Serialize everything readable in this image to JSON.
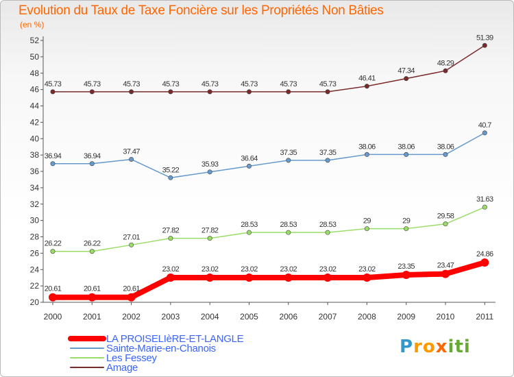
{
  "chart_data": {
    "type": "line",
    "title": "Evolution du Taux de Taxe Foncière sur les Propriétés Non Bâties",
    "unit": "(en %)",
    "xlabel": "",
    "ylabel": "",
    "ylim": [
      20,
      52
    ],
    "ytick_step": 2,
    "x": [
      "2000",
      "2001",
      "2002",
      "2003",
      "2004",
      "2005",
      "2006",
      "2007",
      "2008",
      "2009",
      "2010",
      "2011"
    ],
    "grid": false,
    "legend_position": "bottom-left",
    "series": [
      {
        "name": "LA PROISELIèRE-ET-LANGLE",
        "color": "#ff0000",
        "values": [
          20.61,
          20.61,
          20.61,
          23.02,
          23.02,
          23.02,
          23.02,
          23.02,
          23.02,
          23.35,
          23.47,
          24.86
        ],
        "labels": [
          "20.61",
          "20.61",
          "20.61",
          "23.02",
          "23.02",
          "23.02",
          "23.02",
          "23.02",
          "23.02",
          "23.35",
          "23.47",
          "24.86"
        ]
      },
      {
        "name": "Sainte-Marie-en-Chanois",
        "color": "#6699cc",
        "values": [
          36.94,
          36.94,
          37.47,
          35.22,
          35.93,
          36.64,
          37.35,
          37.35,
          38.06,
          38.06,
          38.06,
          40.7
        ],
        "labels": [
          "36.94",
          "36.94",
          "37.47",
          "35.22",
          "35.93",
          "36.64",
          "37.35",
          "37.35",
          "38.06",
          "38.06",
          "38.06",
          "40.7"
        ]
      },
      {
        "name": "Les Fessey",
        "color": "#99dd66",
        "values": [
          26.22,
          26.22,
          27.01,
          27.82,
          27.82,
          28.53,
          28.53,
          28.53,
          29,
          29,
          29.58,
          31.63
        ],
        "labels": [
          "26.22",
          "26.22",
          "27.01",
          "27.82",
          "27.82",
          "28.53",
          "28.53",
          "28.53",
          "29",
          "29",
          "29.58",
          "31.63"
        ]
      },
      {
        "name": "Amage",
        "color": "#7a2a2a",
        "values": [
          45.73,
          45.73,
          45.73,
          45.73,
          45.73,
          45.73,
          45.73,
          45.73,
          46.41,
          47.34,
          48.29,
          51.39
        ],
        "labels": [
          "45.73",
          "45.73",
          "45.73",
          "45.73",
          "45.73",
          "45.73",
          "45.73",
          "45.73",
          "46.41",
          "47.34",
          "48.29",
          "51.39"
        ]
      }
    ]
  },
  "brand": {
    "logo_text": "Proxiti",
    "letter_colors": [
      "#3399cc",
      "#ff9900",
      "#ff9900",
      "#ff6600",
      "#66aa33",
      "#66aa33",
      "#66aa33"
    ]
  }
}
